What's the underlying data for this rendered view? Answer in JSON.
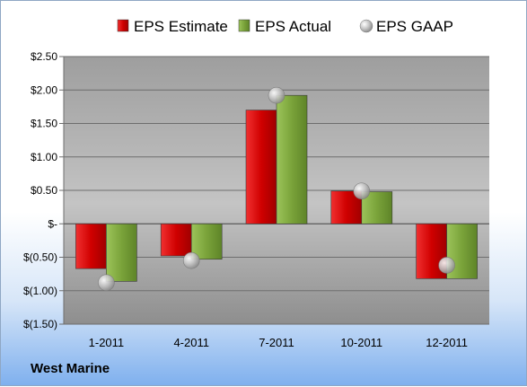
{
  "company": "West Marine",
  "chart_data": {
    "type": "bar",
    "categories": [
      "1-2011",
      "4-2011",
      "7-2011",
      "10-2011",
      "12-2011"
    ],
    "series": [
      {
        "name": "EPS Estimate",
        "kind": "bar",
        "color": "#e01010",
        "values": [
          -0.67,
          -0.48,
          1.7,
          0.49,
          -0.82
        ]
      },
      {
        "name": "EPS Actual",
        "kind": "bar",
        "color": "#86b246",
        "values": [
          -0.86,
          -0.53,
          1.92,
          0.48,
          -0.82
        ]
      },
      {
        "name": "EPS GAAP",
        "kind": "point",
        "color": "#b9b9b9",
        "values": [
          -0.88,
          -0.55,
          1.92,
          0.49,
          -0.62
        ]
      }
    ],
    "ylim": [
      -1.5,
      2.5
    ],
    "yticks": [
      {
        "value": 2.5,
        "label": "$2.50"
      },
      {
        "value": 2.0,
        "label": "$2.00"
      },
      {
        "value": 1.5,
        "label": "$1.50"
      },
      {
        "value": 1.0,
        "label": "$1.00"
      },
      {
        "value": 0.5,
        "label": "$0.50"
      },
      {
        "value": 0.0,
        "label": "$-"
      },
      {
        "value": -0.5,
        "label": "$(0.50)"
      },
      {
        "value": -1.0,
        "label": "$(1.00)"
      },
      {
        "value": -1.5,
        "label": "$(1.50)"
      }
    ],
    "legend": "top",
    "grid": true
  }
}
